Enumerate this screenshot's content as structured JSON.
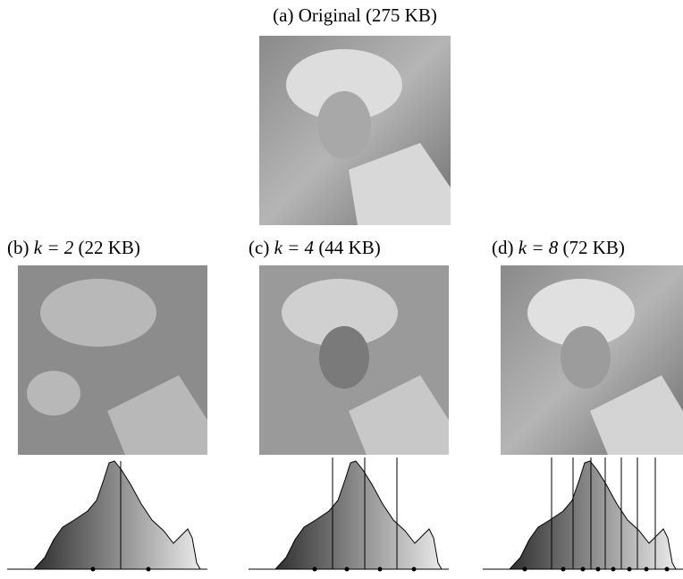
{
  "panels": [
    {
      "label": "(a)",
      "text": "Original",
      "size": "(275 KB)"
    },
    {
      "label": "(b)",
      "math": "k = 2",
      "size": "(22 KB)"
    },
    {
      "label": "(c)",
      "math": "k = 4",
      "size": "(44 KB)"
    },
    {
      "label": "(d)",
      "math": "k = 8",
      "size": "(72 KB)"
    }
  ]
}
